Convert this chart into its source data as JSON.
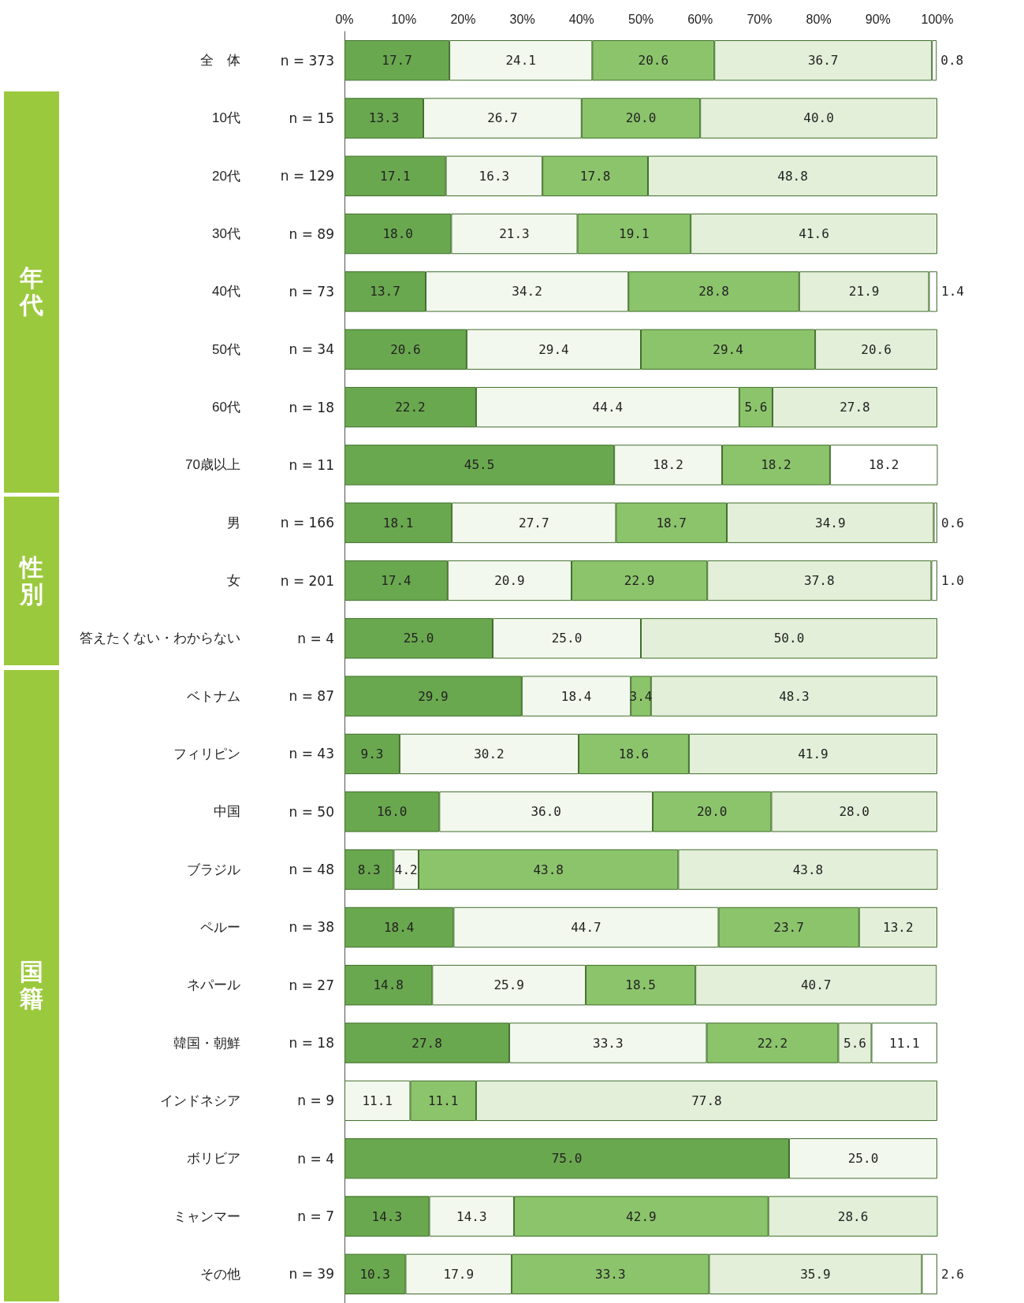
{
  "chart_data": {
    "type": "bar",
    "orientation": "horizontal",
    "stacked": true,
    "grid": false,
    "categories": [
      "全　体",
      "10代",
      "20代",
      "30代",
      "40代",
      "50代",
      "60代",
      "70歳以上",
      "男",
      "女",
      "答えたくない・わからない",
      "ベトナム",
      "フィリピン",
      "中国",
      "ブラジル",
      "ペルー",
      "ネパール",
      "韓国・朝鮮",
      "インドネシア",
      "ボリビア",
      "ミャンマー",
      "その他"
    ],
    "series": [
      {
        "color": "#6aa84f",
        "values": [
          17.7,
          13.3,
          17.1,
          18.0,
          13.7,
          20.6,
          22.2,
          45.5,
          18.1,
          17.4,
          25.0,
          29.9,
          9.3,
          16.0,
          8.3,
          18.4,
          14.8,
          27.8,
          null,
          75.0,
          14.3,
          10.3
        ],
        "value_labels": [
          "17.7",
          "13.3",
          "17.1",
          "18.0",
          "13.7",
          "20.6",
          "22.2",
          "45.5",
          "18.1",
          "17.4",
          "25.0",
          "29.9",
          "9.3",
          "16.0",
          "8.3",
          "18.4",
          "14.8",
          "27.8",
          null,
          "75.0",
          "14.3",
          "10.3"
        ]
      },
      {
        "color": "#f3f8ee",
        "values": [
          24.1,
          26.7,
          16.3,
          21.3,
          34.2,
          29.4,
          44.4,
          18.2,
          27.7,
          20.9,
          25.0,
          18.4,
          30.2,
          36.0,
          4.2,
          44.7,
          25.9,
          33.3,
          11.1,
          25.0,
          14.3,
          17.9
        ],
        "value_labels": [
          "24.1",
          "26.7",
          "16.3",
          "21.3",
          "34.2",
          "29.4",
          "44.4",
          "18.2",
          "27.7",
          "20.9",
          "25.0",
          "18.4",
          "30.2",
          "36.0",
          "4.2",
          "44.7",
          "25.9",
          "33.3",
          "11.1",
          "25.0",
          "14.3",
          "17.9"
        ]
      },
      {
        "color": "#8cc46c",
        "values": [
          20.6,
          20.0,
          17.8,
          19.1,
          28.8,
          29.4,
          5.6,
          18.2,
          18.7,
          22.9,
          null,
          3.4,
          18.6,
          20.0,
          43.8,
          23.7,
          18.5,
          22.2,
          11.1,
          null,
          42.9,
          33.3
        ],
        "value_labels": [
          "20.6",
          "20.0",
          "17.8",
          "19.1",
          "28.8",
          "29.4",
          "5.6",
          "18.2",
          "18.7",
          "22.9",
          null,
          "3.4",
          "18.6",
          "20.0",
          "43.8",
          "23.7",
          "18.5",
          "22.2",
          "11.1",
          null,
          "42.9",
          "33.3"
        ]
      },
      {
        "color": "#e3efd9",
        "values": [
          36.7,
          40.0,
          48.8,
          41.6,
          21.9,
          20.6,
          27.8,
          null,
          34.9,
          37.8,
          50.0,
          48.3,
          41.9,
          28.0,
          43.8,
          13.2,
          40.7,
          5.6,
          77.8,
          null,
          28.6,
          35.9
        ],
        "value_labels": [
          "36.7",
          "40.0",
          "48.8",
          "41.6",
          "21.9",
          "20.6",
          "27.8",
          null,
          "34.9",
          "37.8",
          "50.0",
          "48.3",
          "41.9",
          "28.0",
          "43.8",
          "13.2",
          "40.7",
          "5.6",
          "77.8",
          null,
          "28.6",
          "35.9"
        ]
      },
      {
        "color": "#ffffff",
        "values": [
          0.8,
          null,
          null,
          null,
          1.4,
          null,
          null,
          18.2,
          0.6,
          1.0,
          null,
          null,
          null,
          null,
          null,
          null,
          null,
          11.1,
          null,
          null,
          null,
          2.6
        ],
        "value_labels": [
          "0.8",
          null,
          null,
          null,
          "1.4",
          null,
          null,
          "18.2",
          "0.6",
          "1.0",
          null,
          null,
          null,
          null,
          null,
          null,
          null,
          "11.1",
          null,
          null,
          null,
          "2.6"
        ]
      }
    ],
    "xlim": [
      0,
      100
    ],
    "xticks": [
      {
        "value": 0,
        "label": "0%"
      },
      {
        "value": 10,
        "label": "10%"
      },
      {
        "value": 20,
        "label": "20%"
      },
      {
        "value": 30,
        "label": "30%"
      },
      {
        "value": 40,
        "label": "40%"
      },
      {
        "value": 50,
        "label": "50%"
      },
      {
        "value": 60,
        "label": "60%"
      },
      {
        "value": 70,
        "label": "70%"
      },
      {
        "value": 80,
        "label": "80%"
      },
      {
        "value": 90,
        "label": "90%"
      },
      {
        "value": 100,
        "label": "100%"
      }
    ],
    "annotations": [
      "n = 373",
      "n = 15",
      "n = 129",
      "n = 89",
      "n = 73",
      "n = 34",
      "n = 18",
      "n = 11",
      "n = 166",
      "n = 201",
      "n = 4",
      "n = 87",
      "n = 43",
      "n = 50",
      "n = 48",
      "n = 38",
      "n = 27",
      "n = 18",
      "n = 9",
      "n = 4",
      "n = 7",
      "n = 39",
      "年代",
      "性別",
      "国籍"
    ]
  }
}
